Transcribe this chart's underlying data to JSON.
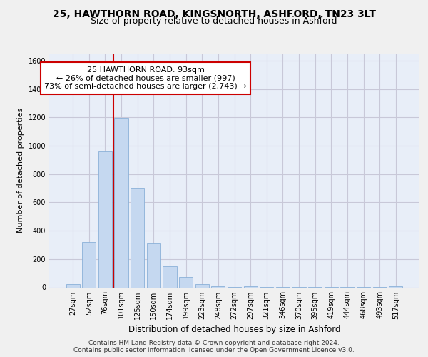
{
  "title": "25, HAWTHORN ROAD, KINGSNORTH, ASHFORD, TN23 3LT",
  "subtitle": "Size of property relative to detached houses in Ashford",
  "xlabel": "Distribution of detached houses by size in Ashford",
  "ylabel": "Number of detached properties",
  "categories": [
    "27sqm",
    "52sqm",
    "76sqm",
    "101sqm",
    "125sqm",
    "150sqm",
    "174sqm",
    "199sqm",
    "223sqm",
    "248sqm",
    "272sqm",
    "297sqm",
    "321sqm",
    "346sqm",
    "370sqm",
    "395sqm",
    "419sqm",
    "444sqm",
    "468sqm",
    "493sqm",
    "517sqm"
  ],
  "values": [
    25,
    320,
    960,
    1195,
    700,
    310,
    150,
    75,
    25,
    10,
    5,
    10,
    5,
    3,
    2,
    2,
    2,
    2,
    2,
    2,
    10
  ],
  "bar_color": "#c5d8f0",
  "bar_edge_color": "#8ab0d8",
  "vline_color": "#cc0000",
  "annotation_text": "25 HAWTHORN ROAD: 93sqm\n← 26% of detached houses are smaller (997)\n73% of semi-detached houses are larger (2,743) →",
  "annotation_box_color": "#ffffff",
  "annotation_box_edge_color": "#cc0000",
  "ylim": [
    0,
    1650
  ],
  "yticks": [
    0,
    200,
    400,
    600,
    800,
    1000,
    1200,
    1400,
    1600
  ],
  "footer_text": "Contains HM Land Registry data © Crown copyright and database right 2024.\nContains public sector information licensed under the Open Government Licence v3.0.",
  "bg_color": "#f0f0f0",
  "plot_bg_color": "#e8eef8",
  "grid_color": "#c8c8d8",
  "title_fontsize": 10,
  "subtitle_fontsize": 9,
  "annotation_fontsize": 8,
  "tick_fontsize": 7,
  "ylabel_fontsize": 8,
  "xlabel_fontsize": 8.5,
  "footer_fontsize": 6.5
}
